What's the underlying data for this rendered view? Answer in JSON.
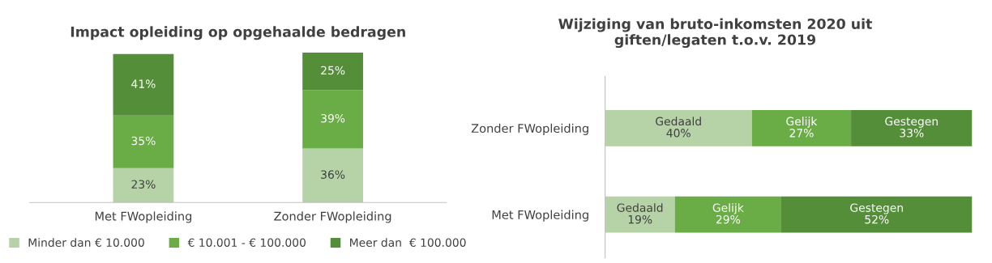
{
  "chart_data": [
    {
      "type": "bar",
      "title": "Impact opleiding op opgehaalde bedragen",
      "stacked": true,
      "categories": [
        "Met FWopleiding",
        "Zonder FWopleiding"
      ],
      "ylim": [
        0,
        100
      ],
      "tick_labels": "x",
      "legend": "bottom",
      "grid": false,
      "series": [
        {
          "name": "Minder dan € 10.000",
          "color": "#b5d3a7",
          "values": [
            23,
            36
          ],
          "value_labels": [
            "23%",
            "36%"
          ]
        },
        {
          "name": "€ 10.001 - € 100.000",
          "color": "#6aad46",
          "values": [
            35,
            39
          ],
          "value_labels": [
            "35%",
            "39%"
          ]
        },
        {
          "name": "Meer dan  € 100.000",
          "color": "#548e38",
          "values": [
            41,
            25
          ],
          "value_labels": [
            "41%",
            "25%"
          ]
        }
      ]
    },
    {
      "type": "bar",
      "title": "Wijziging van bruto-inkomsten 2020 uit giften/legaten t.o.v. 2019",
      "stacked": true,
      "orientation": "horizontal",
      "categories": [
        "Zonder FWopleiding",
        "Met FWopleiding"
      ],
      "xlim": [
        0,
        100
      ],
      "tick_labels": "y",
      "legend": false,
      "grid": false,
      "series": [
        {
          "name": "Gedaald",
          "color": "#b5d3a7",
          "values": [
            40,
            19
          ],
          "value_labels": [
            "40%",
            "19%"
          ]
        },
        {
          "name": "Gelijk",
          "color": "#6aad46",
          "values": [
            27,
            29
          ],
          "value_labels": [
            "27%",
            "29%"
          ]
        },
        {
          "name": "Gestegen",
          "color": "#548e38",
          "values": [
            33,
            52
          ],
          "value_labels": [
            "33%",
            "52%"
          ]
        }
      ]
    }
  ]
}
